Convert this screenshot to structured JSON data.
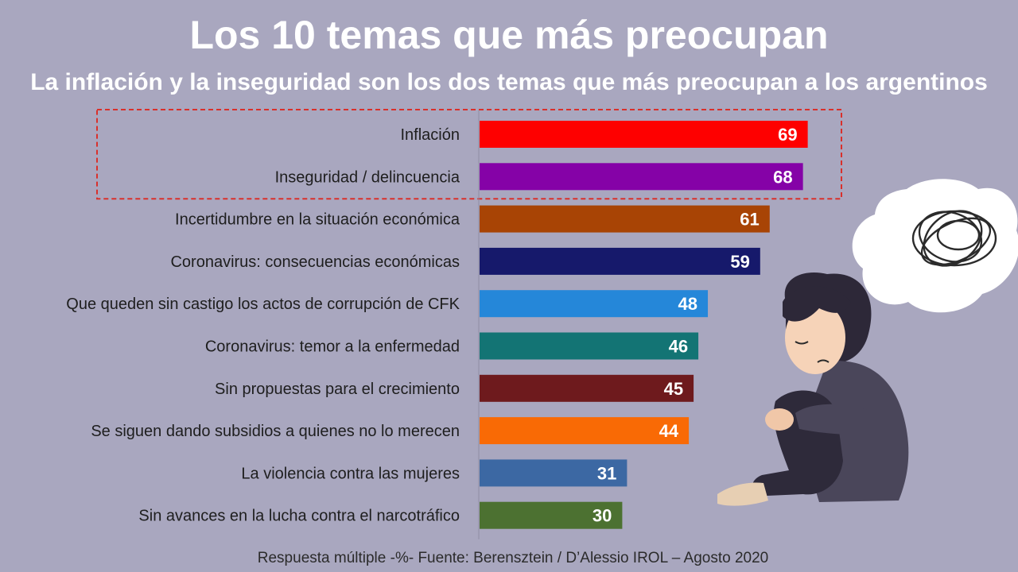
{
  "header": {
    "title": "Los 10 temas que más preocupan",
    "subtitle": "La inflación y la inseguridad son los dos temas que más preocupan a los argentinos"
  },
  "footer": {
    "source": "Respuesta múltiple -%-  Fuente: Berensztein / D’Alessio IROL – Agosto 2020"
  },
  "colors": {
    "background": "#a9a7bf",
    "highlight_border": "#d9302b"
  },
  "illustration": {
    "description_icon": "worried-woman-illustration",
    "thought_icon": "scribble-thought-bubble-icon"
  },
  "chart_data": {
    "type": "bar",
    "orientation": "horizontal",
    "title": "Los 10 temas que más preocupan",
    "subtitle": "La inflación y la inseguridad son los dos temas que más preocupan a los argentinos",
    "categories": [
      "Inflación",
      "Inseguridad / delincuencia",
      "Incertidumbre en la situación económica",
      "Coronavirus: consecuencias económicas",
      "Que queden sin castigo los actos de corrupción de CFK",
      "Coronavirus: temor a la enfermedad",
      "Sin propuestas para el crecimiento",
      "Se siguen dando subsidios a quienes no lo merecen",
      "La violencia contra las mujeres",
      "Sin avances en la lucha contra el narcotráfico"
    ],
    "values": [
      69,
      68,
      61,
      59,
      48,
      46,
      45,
      44,
      31,
      30
    ],
    "bar_colors": [
      "#fe0000",
      "#8502a7",
      "#a84405",
      "#16196b",
      "#2587d9",
      "#137474",
      "#6e1a1d",
      "#f96a05",
      "#3c68a3",
      "#4c7131"
    ],
    "data_labels": [
      "69",
      "68",
      "61",
      "59",
      "48",
      "46",
      "45",
      "44",
      "31",
      "30"
    ],
    "highlighted": [
      "Inflación",
      "Inseguridad / delincuencia"
    ],
    "xlim": [
      0,
      100
    ],
    "grid": false,
    "legend": "none",
    "xlabel": "",
    "ylabel": ""
  }
}
